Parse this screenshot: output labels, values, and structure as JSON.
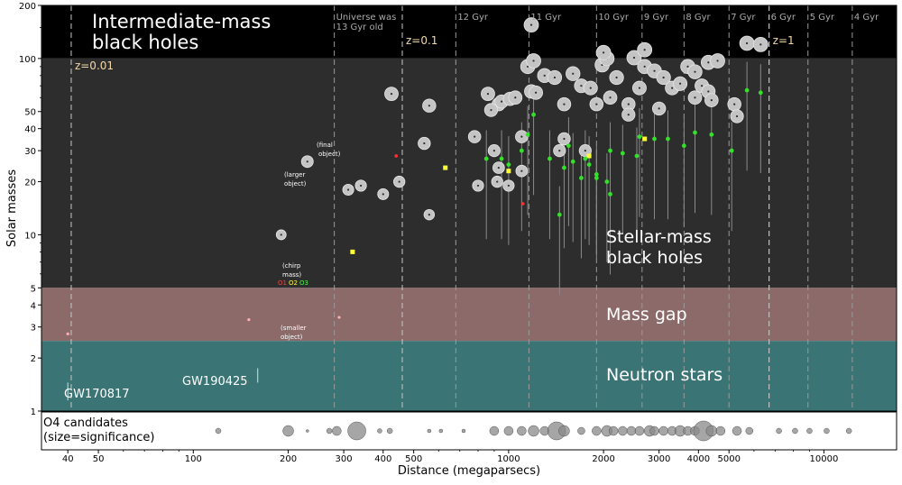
{
  "chart_data": {
    "type": "scatter",
    "xlabel": "Distance (megaparsecs)",
    "ylabel": "Solar masses",
    "xscale": "log",
    "yscale": "log",
    "xlim": [
      33,
      17000
    ],
    "ylim": [
      1,
      200
    ],
    "xticks": [
      40,
      50,
      100,
      200,
      300,
      400,
      500,
      1000,
      2000,
      3000,
      4000,
      5000,
      10000
    ],
    "yticks": [
      1,
      2,
      3,
      4,
      5,
      10,
      20,
      30,
      40,
      50,
      100,
      200
    ],
    "regions": [
      {
        "name": "Intermediate-mass black holes",
        "ymin": 100,
        "ymax": 200,
        "color": "#000000"
      },
      {
        "name": "Stellar-mass black holes",
        "ymin": 5,
        "ymax": 100,
        "color": "#2d2d2d"
      },
      {
        "name": "Mass gap",
        "ymin": 2.5,
        "ymax": 5,
        "color": "#8c6a6a"
      },
      {
        "name": "Neutron stars",
        "ymin": 1,
        "ymax": 2.5,
        "color": "#3b7474"
      }
    ],
    "region_labels": {
      "imbh": [
        "Intermediate-mass",
        "black holes"
      ],
      "smbh": [
        "Stellar-mass",
        "black holes"
      ],
      "gap": "Mass gap",
      "ns": "Neutron stars"
    },
    "redshift_lines": [
      {
        "label": "z=0.01",
        "x": 41
      },
      {
        "label": "z=0.1",
        "x": 460
      },
      {
        "label": "z=1",
        "x": 6700
      }
    ],
    "epoch_lines": [
      {
        "label": "Universe was\n13 Gyr old",
        "x": 280
      },
      {
        "label": "12 Gyr",
        "x": 680
      },
      {
        "label": "11 Gyr",
        "x": 1160
      },
      {
        "label": "10 Gyr",
        "x": 1900
      },
      {
        "label": "9 Gyr",
        "x": 2650
      },
      {
        "label": "8 Gyr",
        "x": 3600
      },
      {
        "label": "7 Gyr",
        "x": 5000
      },
      {
        "label": "6 Gyr",
        "x": 6700
      },
      {
        "label": "5 Gyr",
        "x": 8900
      },
      {
        "label": "4 Gyr",
        "x": 12300
      }
    ],
    "annotations": {
      "final": [
        "(final",
        "object)"
      ],
      "larger": [
        "(larger",
        "object)"
      ],
      "chirp": [
        "(chirp",
        "mass)"
      ],
      "smaller": [
        "(smaller",
        "object)"
      ],
      "runs": [
        "O1",
        "O2",
        "O3"
      ],
      "gw170817": "GW170817",
      "gw190425": "GW190425"
    },
    "series": [
      {
        "name": "final",
        "points": [
          [
            425,
            63
          ],
          [
            560,
            54
          ],
          [
            860,
            63
          ],
          [
            930,
            55
          ],
          [
            950,
            57
          ],
          [
            1010,
            59
          ],
          [
            1050,
            60
          ],
          [
            1150,
            90
          ],
          [
            1180,
            65
          ],
          [
            1220,
            64
          ],
          [
            1300,
            80
          ],
          [
            1400,
            78
          ],
          [
            1500,
            55
          ],
          [
            1600,
            82
          ],
          [
            1700,
            70
          ],
          [
            1820,
            68
          ],
          [
            1980,
            92
          ],
          [
            2050,
            100
          ],
          [
            2200,
            78
          ],
          [
            2400,
            55
          ],
          [
            2500,
            101
          ],
          [
            2600,
            68
          ],
          [
            2700,
            90
          ],
          [
            2900,
            85
          ],
          [
            3100,
            78
          ],
          [
            3300,
            68
          ],
          [
            3500,
            72
          ],
          [
            3700,
            90
          ],
          [
            3900,
            84
          ],
          [
            4100,
            70
          ],
          [
            4300,
            95
          ],
          [
            4600,
            97
          ],
          [
            5200,
            55
          ],
          [
            5700,
            122
          ],
          [
            6300,
            120
          ],
          [
            2000,
            108
          ],
          [
            2700,
            112
          ],
          [
            1180,
            155
          ],
          [
            1200,
            97
          ],
          [
            2400,
            48
          ],
          [
            880,
            51
          ],
          [
            4300,
            65
          ],
          [
            4400,
            58
          ],
          [
            780,
            36
          ],
          [
            900,
            30
          ],
          [
            1100,
            36
          ],
          [
            1500,
            35
          ],
          [
            2100,
            60
          ],
          [
            5300,
            47
          ],
          [
            1900,
            55
          ],
          [
            3900,
            60
          ],
          [
            3000,
            52
          ],
          [
            540,
            33
          ],
          [
            230,
            26
          ],
          [
            310,
            18
          ],
          [
            340,
            19
          ],
          [
            400,
            17
          ],
          [
            450,
            20
          ],
          [
            920,
            20
          ],
          [
            930,
            24
          ],
          [
            1000,
            19
          ],
          [
            1100,
            23
          ],
          [
            1750,
            30
          ],
          [
            1450,
            30
          ],
          [
            800,
            19
          ],
          [
            560,
            13
          ],
          [
            190,
            10
          ]
        ]
      },
      {
        "name": "chirp",
        "points": [
          [
            1200,
            48
          ],
          [
            1150,
            37
          ],
          [
            2600,
            36
          ],
          [
            2100,
            30
          ],
          [
            2900,
            35
          ],
          [
            3200,
            35
          ],
          [
            3600,
            32
          ],
          [
            3900,
            38
          ],
          [
            4400,
            37
          ],
          [
            5100,
            30
          ],
          [
            5700,
            66
          ],
          [
            6300,
            64
          ],
          [
            1550,
            32
          ],
          [
            1750,
            27
          ],
          [
            2300,
            29
          ],
          [
            2550,
            28
          ],
          [
            1800,
            25
          ],
          [
            1900,
            22
          ],
          [
            1700,
            21
          ],
          [
            1600,
            26
          ],
          [
            1350,
            27
          ],
          [
            1100,
            30
          ],
          [
            1000,
            25
          ],
          [
            950,
            27
          ],
          [
            850,
            27
          ],
          [
            1450,
            13
          ],
          [
            2100,
            17
          ],
          [
            2050,
            20
          ],
          [
            1900,
            21
          ],
          [
            1500,
            24
          ]
        ]
      },
      {
        "name": "O2",
        "points": [
          [
            1000,
            23
          ],
          [
            1800,
            28
          ],
          [
            2700,
            35
          ],
          [
            630,
            24
          ],
          [
            320,
            8
          ]
        ]
      },
      {
        "name": "O1",
        "points": [
          [
            440,
            28
          ],
          [
            1110,
            15
          ]
        ]
      },
      {
        "name": "small_objects",
        "points": [
          [
            40,
            2.74
          ],
          [
            150,
            3.3
          ],
          [
            290,
            3.4
          ]
        ]
      }
    ],
    "o4_candidates": [
      {
        "x": 120,
        "s": 3
      },
      {
        "x": 200,
        "s": 6
      },
      {
        "x": 230,
        "s": 1.5
      },
      {
        "x": 270,
        "s": 3
      },
      {
        "x": 285,
        "s": 5
      },
      {
        "x": 330,
        "s": 10
      },
      {
        "x": 390,
        "s": 2.5
      },
      {
        "x": 420,
        "s": 3
      },
      {
        "x": 560,
        "s": 2
      },
      {
        "x": 610,
        "s": 2
      },
      {
        "x": 720,
        "s": 2
      },
      {
        "x": 900,
        "s": 5
      },
      {
        "x": 1000,
        "s": 5
      },
      {
        "x": 1100,
        "s": 5
      },
      {
        "x": 1200,
        "s": 6
      },
      {
        "x": 1300,
        "s": 5
      },
      {
        "x": 1420,
        "s": 10
      },
      {
        "x": 1500,
        "s": 6
      },
      {
        "x": 1700,
        "s": 4
      },
      {
        "x": 1900,
        "s": 5
      },
      {
        "x": 2050,
        "s": 6
      },
      {
        "x": 2150,
        "s": 5
      },
      {
        "x": 2300,
        "s": 5
      },
      {
        "x": 2450,
        "s": 5
      },
      {
        "x": 2600,
        "s": 5
      },
      {
        "x": 2800,
        "s": 6
      },
      {
        "x": 2900,
        "s": 5
      },
      {
        "x": 3100,
        "s": 5
      },
      {
        "x": 3300,
        "s": 5
      },
      {
        "x": 3500,
        "s": 6
      },
      {
        "x": 3700,
        "s": 5
      },
      {
        "x": 3900,
        "s": 5
      },
      {
        "x": 4150,
        "s": 11
      },
      {
        "x": 4400,
        "s": 6
      },
      {
        "x": 4700,
        "s": 5
      },
      {
        "x": 5300,
        "s": 5
      },
      {
        "x": 5800,
        "s": 4
      },
      {
        "x": 7200,
        "s": 3
      },
      {
        "x": 8100,
        "s": 3
      },
      {
        "x": 9000,
        "s": 3
      },
      {
        "x": 10200,
        "s": 3
      },
      {
        "x": 12000,
        "s": 3
      }
    ],
    "o4_label": [
      "O4 candidates",
      "(size=significance)"
    ]
  }
}
